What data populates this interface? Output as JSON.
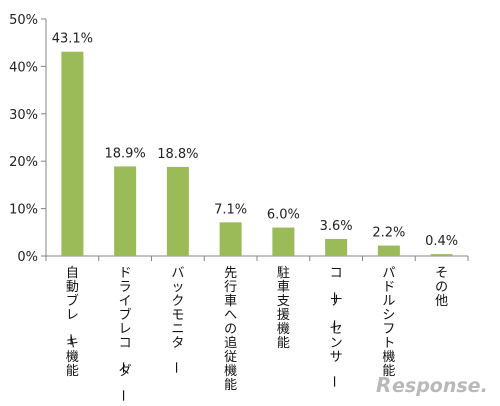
{
  "chart_data": {
    "type": "bar",
    "categories": [
      "自動ブレーキ機能",
      "ドライブレコーダー",
      "バックモニター",
      "先行車への追従機能",
      "駐車支援機能",
      "コーナーセンサー",
      "パドルシフト機能",
      "その他"
    ],
    "values": [
      43.1,
      18.9,
      18.8,
      7.1,
      6.0,
      3.6,
      2.2,
      0.4
    ],
    "data_labels": [
      "43.1%",
      "18.9%",
      "18.8%",
      "7.1%",
      "6.0%",
      "3.6%",
      "2.2%",
      "0.4%"
    ],
    "ylim": [
      0,
      50
    ],
    "y_ticks": [
      0,
      10,
      20,
      30,
      40,
      50
    ],
    "y_tick_labels": [
      "0%",
      "10%",
      "20%",
      "30%",
      "40%",
      "50%"
    ],
    "grid": false,
    "bar_color": "#9bbb59",
    "axis_color": "#868686"
  },
  "watermark": {
    "mark": "R",
    "text": "esponse."
  }
}
